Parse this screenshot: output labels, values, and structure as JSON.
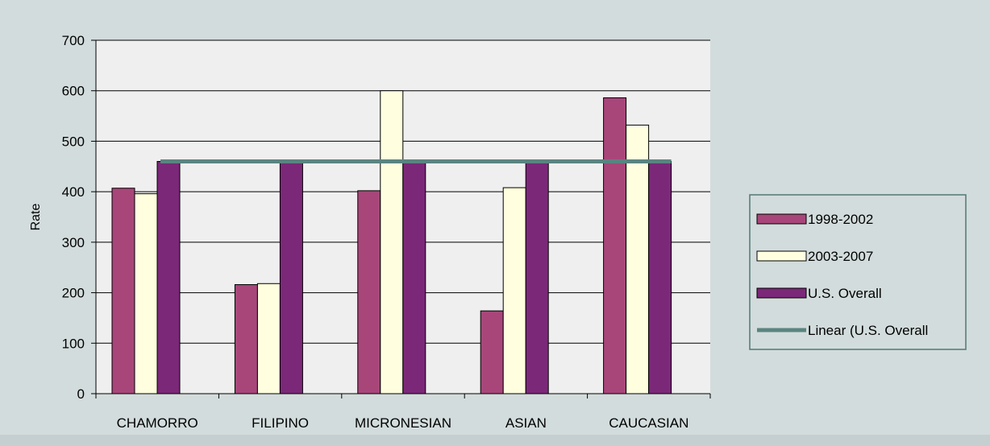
{
  "chart_data": {
    "type": "bar",
    "title": "",
    "xlabel": "",
    "ylabel": "Rate",
    "ylim": [
      0,
      700
    ],
    "yticks": [
      0,
      100,
      200,
      300,
      400,
      500,
      600,
      700
    ],
    "grid": true,
    "legend_position": "right",
    "categories": [
      "CHAMORRO",
      "FILIPINO",
      "MICRONESIAN",
      "ASIAN",
      "CAUCASIAN"
    ],
    "series": [
      {
        "name": "1998-2002",
        "type": "bar",
        "color": "#a8467a",
        "values": [
          407,
          216,
          402,
          164,
          586
        ]
      },
      {
        "name": "2003-2007",
        "type": "bar",
        "color": "#ffffe0",
        "values": [
          396,
          218,
          600,
          408,
          532
        ]
      },
      {
        "name": "U.S. Overall",
        "type": "bar",
        "color": "#7b2878",
        "values": [
          460,
          460,
          460,
          460,
          460
        ]
      },
      {
        "name": "Linear (U.S. Overall",
        "type": "line",
        "color": "#5a8480",
        "values": [
          460,
          460,
          460,
          460,
          460
        ]
      }
    ]
  }
}
